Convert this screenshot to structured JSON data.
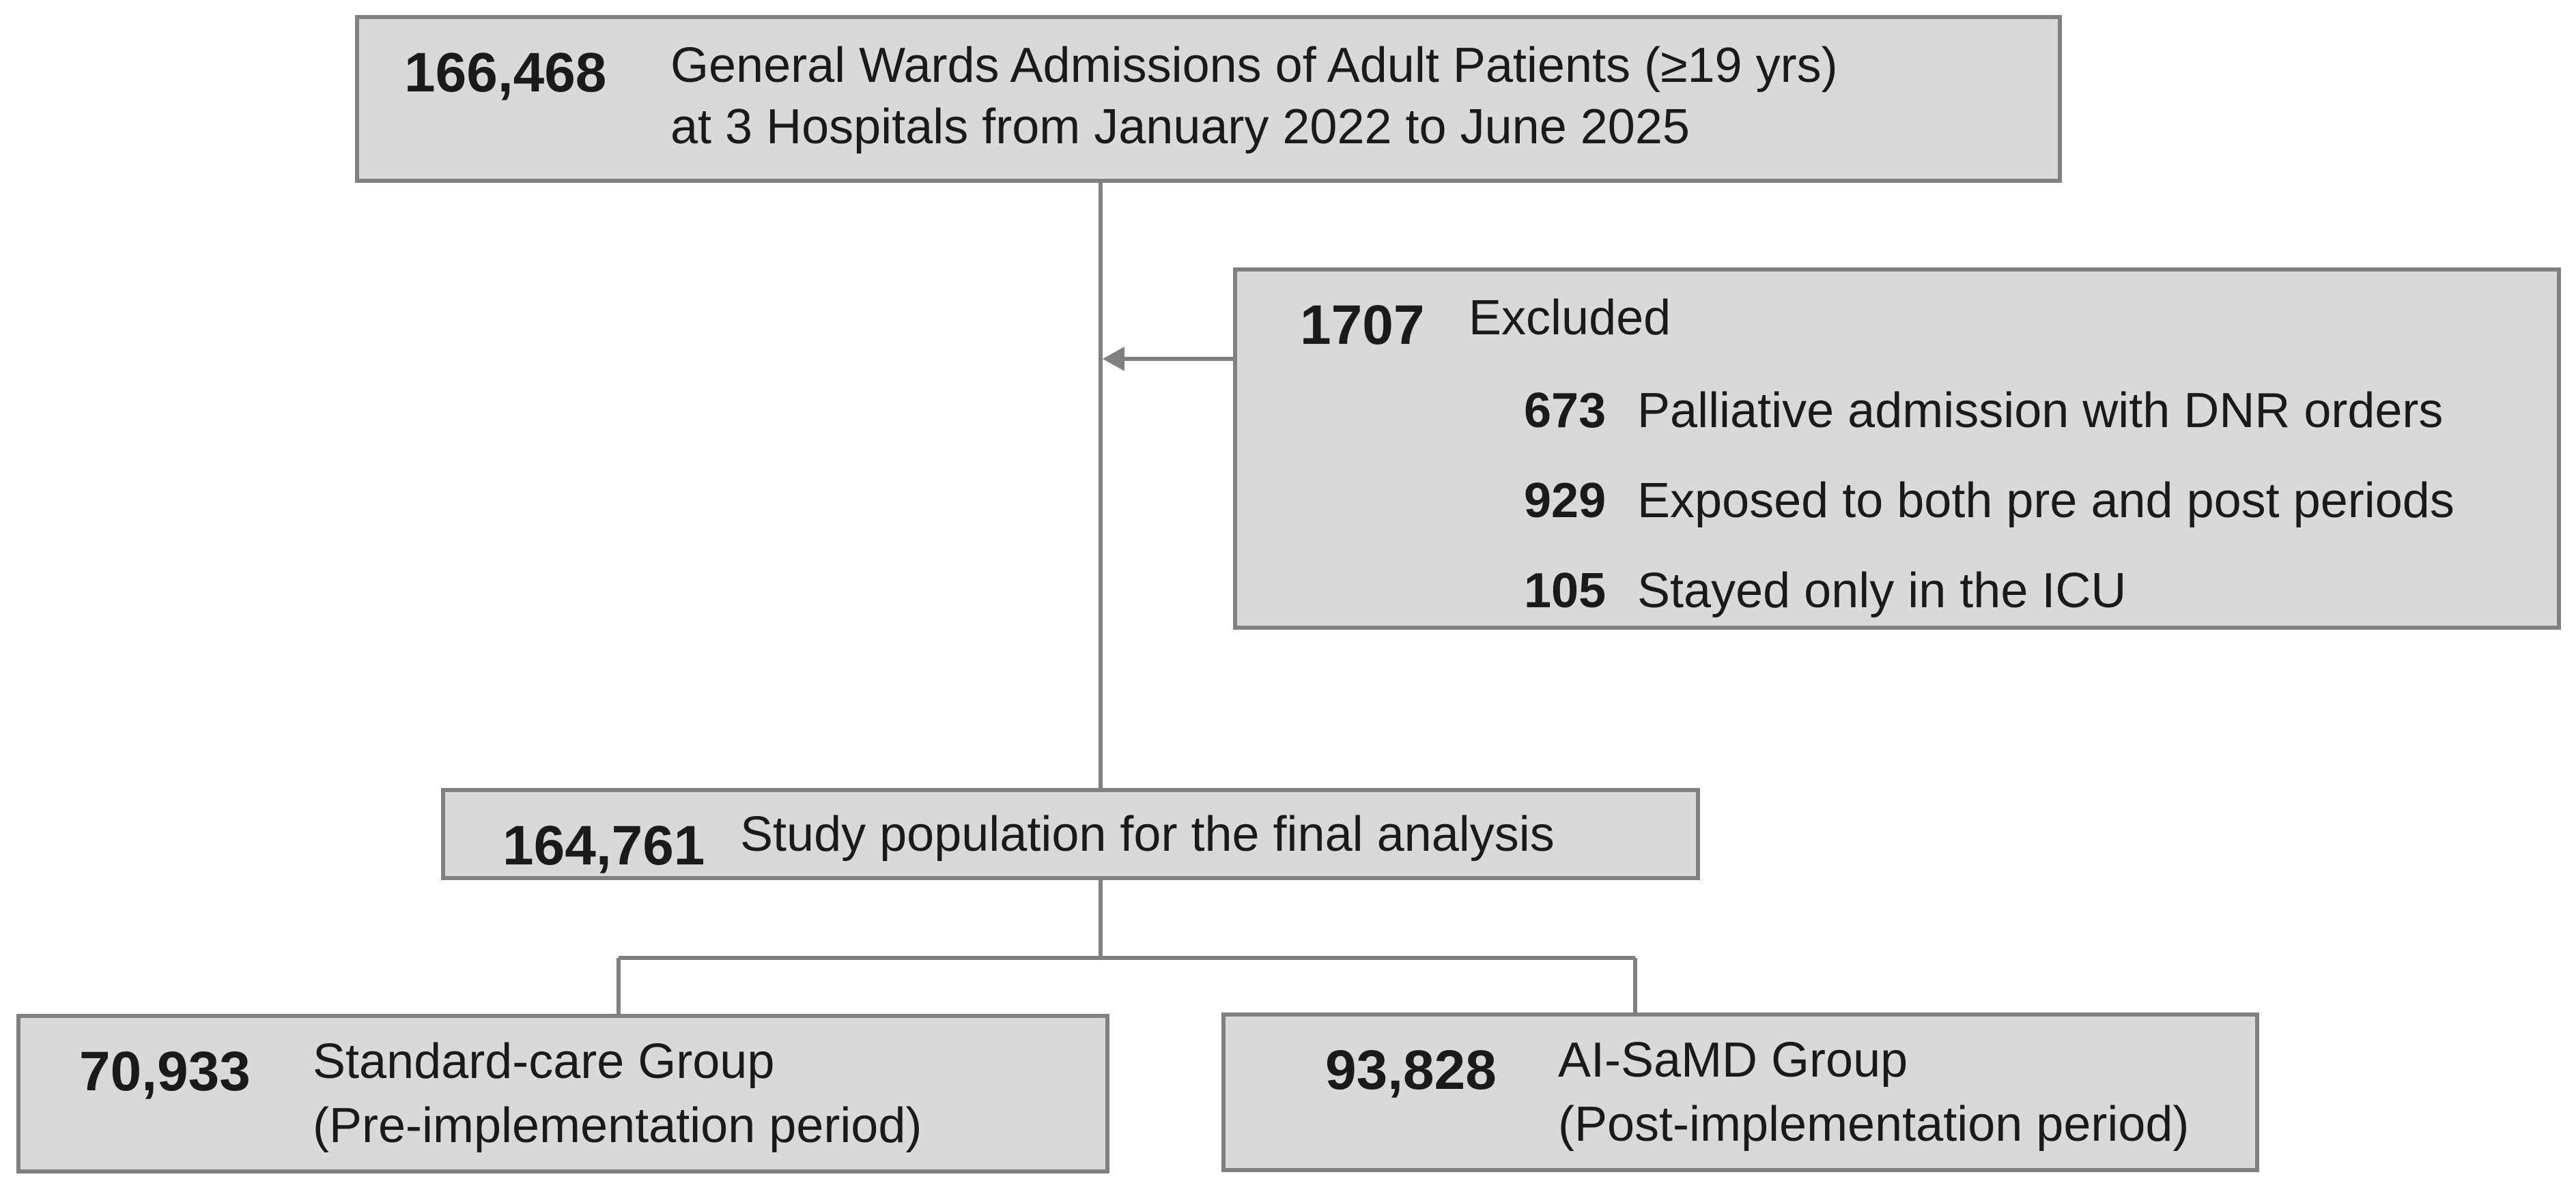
{
  "total": {
    "count": "166,468",
    "line1": "General Wards Admissions of Adult Patients (≥19 yrs)",
    "line2": "at 3 Hospitals from January 2022 to June 2025"
  },
  "excluded": {
    "count": "1707",
    "label": "Excluded",
    "reasons": [
      {
        "count": "673",
        "label": "Palliative admission with DNR orders"
      },
      {
        "count": "929",
        "label": "Exposed to both pre and post periods"
      },
      {
        "count": "105",
        "label": "Stayed only in the ICU"
      }
    ]
  },
  "study": {
    "count": "164,761",
    "label": "Study population for the  final analysis"
  },
  "groups": [
    {
      "count": "70,933",
      "line1": "Standard-care Group",
      "line2": "(Pre-implementation period)"
    },
    {
      "count": "93,828",
      "line1": "AI-SaMD Group",
      "line2": "(Post-implementation period)"
    }
  ],
  "colors": {
    "box_fill": "#d9d9d9",
    "border": "#808080",
    "text": "#1a1a1a"
  }
}
